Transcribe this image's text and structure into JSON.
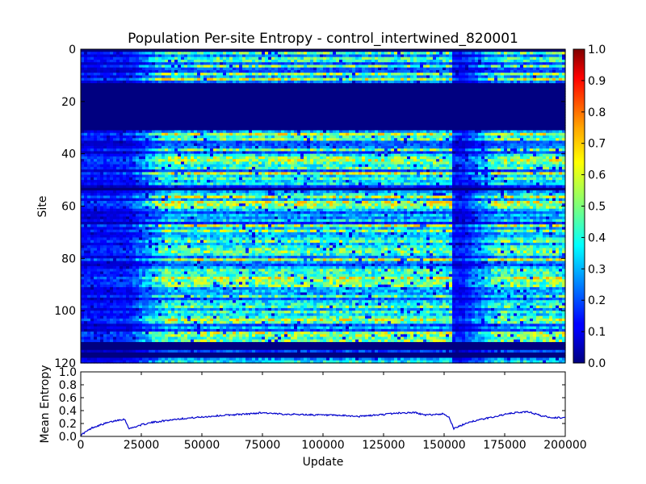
{
  "chart_data": [
    {
      "type": "heatmap",
      "title": "Population Per-site Entropy - control_intertwined_820001",
      "xlabel": "",
      "ylabel": "Site",
      "x_range": [
        0,
        200000
      ],
      "y_range": [
        0,
        120
      ],
      "y_ticks": [
        0,
        20,
        40,
        60,
        80,
        100,
        120
      ],
      "colorbar": {
        "range": [
          0.0,
          1.0
        ],
        "ticks": [
          "0.0",
          "0.1",
          "0.2",
          "0.3",
          "0.4",
          "0.5",
          "0.6",
          "0.7",
          "0.8",
          "0.9",
          "1.0"
        ],
        "colormap": "jet"
      },
      "zero_entropy_site_bands": [
        [
          0,
          1
        ],
        [
          13,
          31
        ],
        [
          53,
          54
        ],
        [
          112,
          115
        ],
        [
          116,
          118
        ]
      ],
      "low_entropy_update_ranges": [
        [
          0,
          20000
        ],
        [
          153000,
          158000
        ]
      ],
      "approx_cell_value_range": [
        0.0,
        0.7
      ]
    },
    {
      "type": "line",
      "title": "",
      "xlabel": "Update",
      "ylabel": "Mean Entropy",
      "xlim": [
        0,
        200000
      ],
      "ylim": [
        0.0,
        1.0
      ],
      "x_ticks": [
        "0",
        "25000",
        "50000",
        "75000",
        "100000",
        "125000",
        "150000",
        "175000",
        "200000"
      ],
      "y_ticks": [
        "0.0",
        "0.2",
        "0.4",
        "0.6",
        "0.8",
        "1.0"
      ],
      "line_color": "#0000cc",
      "series": [
        {
          "name": "",
          "x": [
            0,
            5000,
            10000,
            15000,
            18000,
            19000,
            20000,
            21000,
            25000,
            30000,
            40000,
            50000,
            60000,
            70000,
            75000,
            80000,
            90000,
            100000,
            110000,
            115000,
            125000,
            130000,
            138000,
            142000,
            150000,
            152000,
            154000,
            156000,
            160000,
            170000,
            175000,
            180000,
            185000,
            190000,
            195000,
            200000
          ],
          "y": [
            0.02,
            0.14,
            0.2,
            0.25,
            0.27,
            0.2,
            0.12,
            0.13,
            0.18,
            0.22,
            0.27,
            0.3,
            0.33,
            0.35,
            0.37,
            0.35,
            0.34,
            0.33,
            0.32,
            0.31,
            0.34,
            0.36,
            0.37,
            0.33,
            0.35,
            0.3,
            0.12,
            0.15,
            0.22,
            0.3,
            0.34,
            0.37,
            0.38,
            0.32,
            0.29,
            0.29
          ]
        }
      ]
    }
  ]
}
